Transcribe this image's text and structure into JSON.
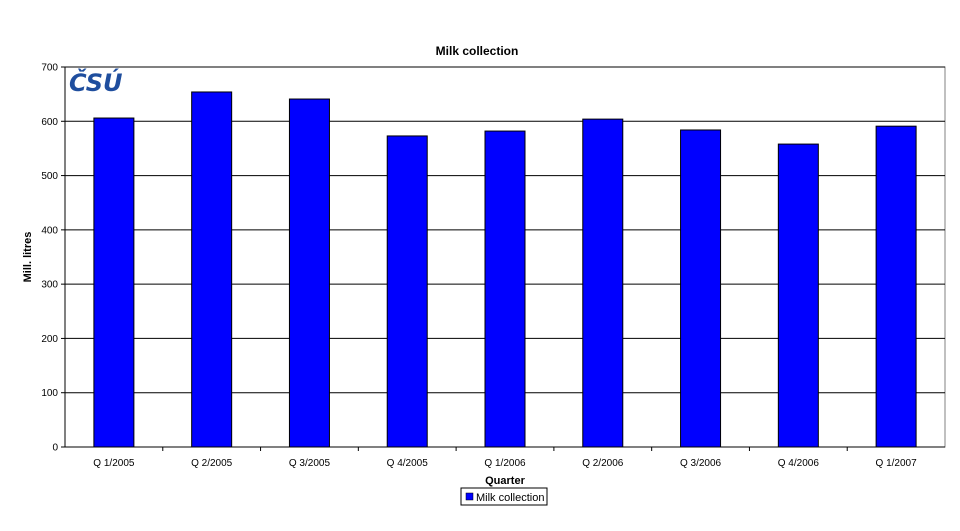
{
  "logo": {
    "text": "ČSÚ",
    "color": "#1f4e9e"
  },
  "chart_data": {
    "type": "bar",
    "title": "Milk collection",
    "xlabel": "Quarter",
    "ylabel": "Mill. litres",
    "ylim": [
      0,
      700
    ],
    "yticks": [
      0,
      100,
      200,
      300,
      400,
      500,
      600,
      700
    ],
    "grid": true,
    "legend_position": "bottom",
    "categories": [
      "Q 1/2005",
      "Q 2/2005",
      "Q 3/2005",
      "Q 4/2005",
      "Q 1/2006",
      "Q 2/2006",
      "Q 3/2006",
      "Q 4/2006",
      "Q 1/2007"
    ],
    "series": [
      {
        "name": "Milk collection",
        "color": "#0000ff",
        "values": [
          606,
          654,
          641,
          573,
          582,
          604,
          584,
          558,
          591
        ]
      }
    ]
  }
}
